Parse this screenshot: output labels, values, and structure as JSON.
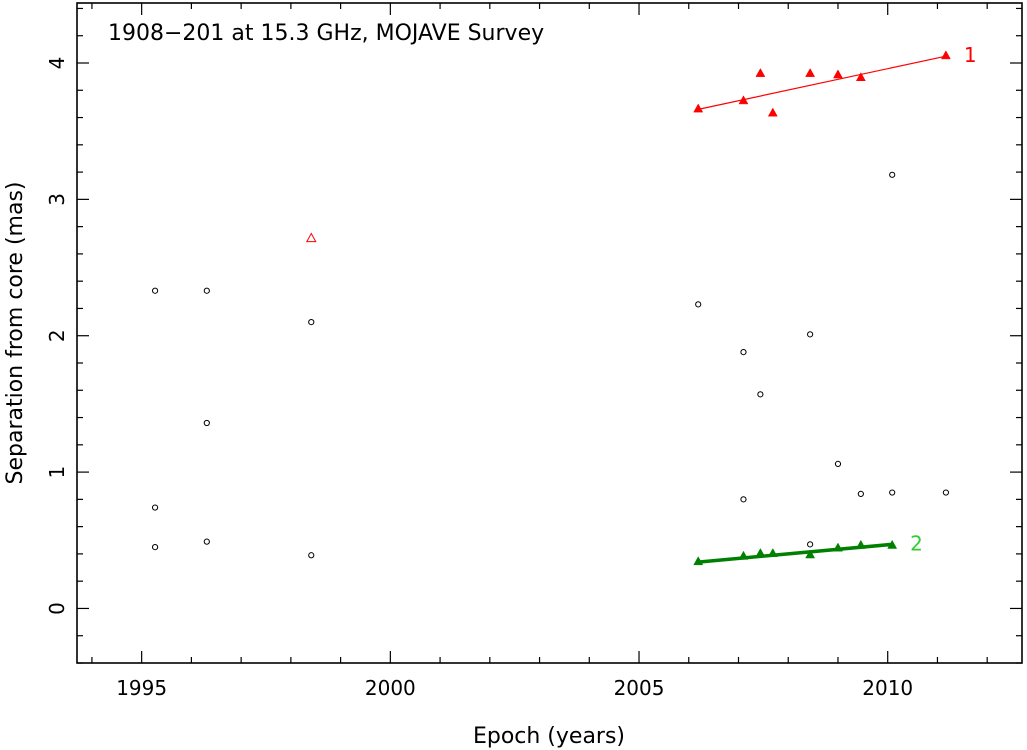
{
  "chart_data": {
    "type": "scatter",
    "title": "1908−201 at 15.3 GHz, MOJAVE Survey",
    "xlabel": "Epoch (years)",
    "ylabel": "Separation from core (mas)",
    "xlim": [
      1993.7,
      2012.7
    ],
    "ylim": [
      -0.4,
      4.44
    ],
    "x_ticks": [
      1995,
      2000,
      2005,
      2010
    ],
    "x_tick_labels": [
      "1995",
      "2000",
      "2005",
      "2010"
    ],
    "x_minor_step": 1,
    "y_ticks": [
      0,
      1,
      2,
      3,
      4
    ],
    "y_tick_labels": [
      "0",
      "1",
      "2",
      "3",
      "4"
    ],
    "y_minor_step": 0.2,
    "colors": {
      "unfitted": "#000000",
      "component_1": "#ff0000",
      "component_2": "#008000",
      "component_2_label": "#33cc33"
    },
    "unfitted_points": [
      {
        "x": 1995.27,
        "y": 2.33
      },
      {
        "x": 1995.27,
        "y": 0.74
      },
      {
        "x": 1995.27,
        "y": 0.45
      },
      {
        "x": 1996.31,
        "y": 2.33
      },
      {
        "x": 1996.31,
        "y": 1.36
      },
      {
        "x": 1996.31,
        "y": 0.49
      },
      {
        "x": 1998.41,
        "y": 2.1
      },
      {
        "x": 1998.41,
        "y": 0.39
      },
      {
        "x": 2006.19,
        "y": 2.23
      },
      {
        "x": 2007.1,
        "y": 1.88
      },
      {
        "x": 2007.1,
        "y": 0.8
      },
      {
        "x": 2007.44,
        "y": 1.57
      },
      {
        "x": 2008.44,
        "y": 2.01
      },
      {
        "x": 2008.44,
        "y": 0.47
      },
      {
        "x": 2009.0,
        "y": 1.06
      },
      {
        "x": 2009.46,
        "y": 0.84
      },
      {
        "x": 2010.09,
        "y": 3.18
      },
      {
        "x": 2010.09,
        "y": 0.85
      },
      {
        "x": 2011.17,
        "y": 0.85
      }
    ],
    "series": [
      {
        "component": "1",
        "label": "1",
        "points": [
          {
            "x": 2006.19,
            "y": 3.66
          },
          {
            "x": 2007.1,
            "y": 3.72
          },
          {
            "x": 2007.44,
            "y": 3.92
          },
          {
            "x": 2007.69,
            "y": 3.63
          },
          {
            "x": 2008.44,
            "y": 3.92
          },
          {
            "x": 2009.0,
            "y": 3.91
          },
          {
            "x": 2009.46,
            "y": 3.89
          },
          {
            "x": 2011.17,
            "y": 4.05
          }
        ],
        "fit": {
          "x": [
            2006.19,
            2011.17
          ],
          "y": [
            3.66,
            4.05
          ]
        },
        "extra_points_open": [
          {
            "x": 1998.41,
            "y": 2.71
          }
        ]
      },
      {
        "component": "2",
        "label": "2",
        "points": [
          {
            "x": 2006.19,
            "y": 0.34
          },
          {
            "x": 2007.1,
            "y": 0.38
          },
          {
            "x": 2007.44,
            "y": 0.4
          },
          {
            "x": 2007.69,
            "y": 0.4
          },
          {
            "x": 2008.44,
            "y": 0.39
          },
          {
            "x": 2009.0,
            "y": 0.44
          },
          {
            "x": 2009.46,
            "y": 0.46
          },
          {
            "x": 2010.09,
            "y": 0.46
          }
        ],
        "fit": {
          "x": [
            2006.19,
            2010.09
          ],
          "y": [
            0.34,
            0.47
          ]
        }
      }
    ]
  }
}
